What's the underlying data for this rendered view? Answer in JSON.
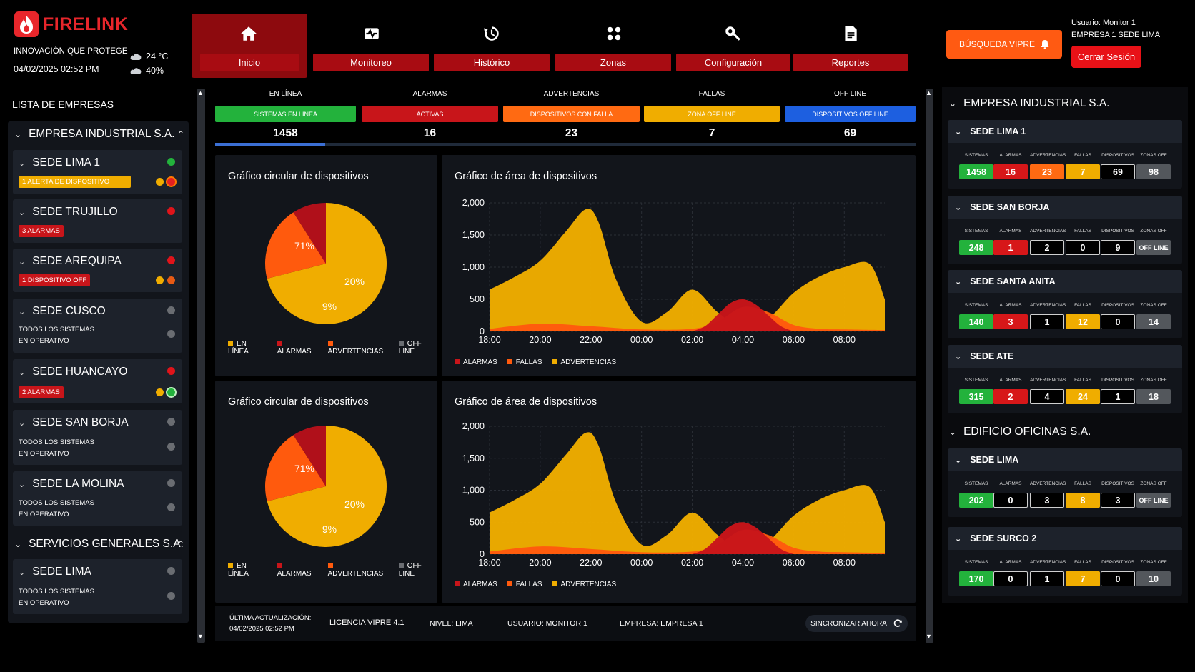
{
  "brand": {
    "name": "FIRELINK",
    "tagline": "INNOVACIÓN QUE PROTEGE",
    "datetime": "04/02/2025 02:52 PM"
  },
  "weather": {
    "temp": "24 °C",
    "humidity": "40%"
  },
  "nav": [
    {
      "label": "Inicio",
      "icon": "home-icon"
    },
    {
      "label": "Monitoreo",
      "icon": "monitor-icon"
    },
    {
      "label": "Histórico",
      "icon": "history-icon"
    },
    {
      "label": "Zonas",
      "icon": "zones-icon"
    },
    {
      "label": "Configuración",
      "icon": "wrench-icon"
    },
    {
      "label": "Reportes",
      "icon": "report-icon"
    }
  ],
  "header": {
    "vipre": "BÚSQUEDA VIPRE",
    "user": "Usuario: Monitor 1",
    "company": "EMPRESA 1 SEDE LIMA",
    "logout": "Cerrar Sesión"
  },
  "sidebar": {
    "title": "LISTA DE EMPRESAS",
    "company1": "EMPRESA INDUSTRIAL S.A.",
    "company2": "SERVICIOS GENERALES S.A.",
    "ok1": "TODOS LOS SISTEMAS",
    "ok2": "EN OPERATIVO",
    "sites": [
      {
        "name": "SEDE LIMA 1",
        "badge": "1 ALERTA DE DISPOSITIVO"
      },
      {
        "name": "SEDE TRUJILLO",
        "badge": "3 ALARMAS"
      },
      {
        "name": "SEDE AREQUIPA",
        "badge": "1 DISPOSITIVO OFF"
      },
      {
        "name": "SEDE CUSCO"
      },
      {
        "name": "SEDE HUANCAYO",
        "badge": "2 ALARMAS"
      },
      {
        "name": "SEDE SAN BORJA"
      },
      {
        "name": "SEDE LA MOLINA"
      },
      {
        "name": "SEDE LIMA"
      }
    ]
  },
  "kpis": [
    {
      "label": "EN LÍNEA",
      "bar": "SISTEMAS EN LÍNEA",
      "value": "1458",
      "color": "#23b23c"
    },
    {
      "label": "ALARMAS",
      "bar": "ACTIVAS",
      "value": "16",
      "color": "#c8151a"
    },
    {
      "label": "ADVERTENCIAS",
      "bar": "DISPOSITIVOS CON FALLA",
      "value": "23",
      "color": "#ff6a12"
    },
    {
      "label": "FALLAS",
      "bar": "ZONA OFF LINE",
      "value": "7",
      "color": "#f0ad00"
    },
    {
      "label": "OFF LINE",
      "bar": "DISPOSITIVOS OFF LINE",
      "value": "69",
      "color": "#1d5fe0"
    }
  ],
  "progress": 0.157,
  "charts": {
    "pie_title": "Gráfico circular de dispositivos",
    "area_title": "Gráfico de área de dispositivos",
    "pie_legend": [
      "EN LÍNEA",
      "ALARMAS",
      "ADVERTENCIAS",
      "OFF LINE"
    ],
    "area_legend": [
      "ALARMAS",
      "FALLAS",
      "ADVERTENCIAS"
    ]
  },
  "chart_data": [
    {
      "type": "pie",
      "slices": [
        {
          "label": "EN LÍNEA",
          "value": 71,
          "text": "71%"
        },
        {
          "label": "ADVERTENCIAS",
          "value": 20,
          "text": "20%"
        },
        {
          "label": "ALARMAS",
          "value": 9,
          "text": "9%"
        }
      ],
      "colors": [
        "#f0ad00",
        "#ff5a0d",
        "#b0101a"
      ]
    },
    {
      "type": "area",
      "x": [
        "18:00",
        "20:00",
        "22:00",
        "00:00",
        "02:00",
        "04:00",
        "06:00",
        "08:00"
      ],
      "yticks": [
        "2,000",
        "1,500",
        "1,000",
        "500",
        "0"
      ],
      "ylim": [
        0,
        2000
      ],
      "series": [
        {
          "name": "ADVERTENCIAS",
          "color": "#f0ad00",
          "x": [
            18,
            19,
            20,
            21,
            21.8,
            22.3,
            23,
            24,
            25,
            26,
            27,
            28,
            29,
            30,
            31,
            32,
            33,
            33.6
          ],
          "values": [
            650,
            850,
            1100,
            1550,
            1900,
            1700,
            800,
            150,
            300,
            650,
            300,
            50,
            200,
            600,
            850,
            1000,
            1050,
            500
          ]
        },
        {
          "name": "FALLAS",
          "color": "#ff5a0d",
          "x": [
            18,
            20,
            22,
            24,
            26,
            27,
            28,
            29,
            30,
            31,
            32,
            33.6
          ],
          "values": [
            40,
            120,
            80,
            30,
            40,
            150,
            380,
            300,
            100,
            40,
            30,
            20
          ]
        },
        {
          "name": "ALARMAS",
          "color": "#c8151a",
          "x": [
            26,
            26.5,
            27,
            27.5,
            28,
            28.5,
            29,
            29.5,
            30
          ],
          "values": [
            0,
            80,
            260,
            440,
            500,
            420,
            250,
            80,
            0
          ]
        }
      ]
    },
    {
      "type": "pie",
      "slices": [
        {
          "label": "EN LÍNEA",
          "value": 71,
          "text": "71%"
        },
        {
          "label": "ADVERTENCIAS",
          "value": 20,
          "text": "20%"
        },
        {
          "label": "ALARMAS",
          "value": 9,
          "text": "9%"
        }
      ],
      "colors": [
        "#f0ad00",
        "#ff5a0d",
        "#b0101a"
      ]
    },
    {
      "type": "area",
      "x": [
        "18:00",
        "20:00",
        "22:00",
        "00:00",
        "02:00",
        "04:00",
        "06:00",
        "08:00"
      ],
      "yticks": [
        "2,000",
        "1,500",
        "1,000",
        "500",
        "0"
      ],
      "ylim": [
        0,
        2000
      ],
      "series": [
        {
          "name": "ADVERTENCIAS",
          "color": "#f0ad00",
          "x": [
            18,
            19,
            20,
            21,
            21.8,
            22.3,
            23,
            24,
            25,
            26,
            27,
            28,
            29,
            30,
            31,
            32,
            33,
            33.6
          ],
          "values": [
            650,
            850,
            1100,
            1550,
            1900,
            1700,
            800,
            150,
            300,
            650,
            300,
            50,
            200,
            600,
            850,
            1000,
            1050,
            500
          ]
        },
        {
          "name": "FALLAS",
          "color": "#ff5a0d",
          "x": [
            18,
            20,
            22,
            24,
            26,
            27,
            28,
            29,
            30,
            31,
            32,
            33.6
          ],
          "values": [
            40,
            120,
            80,
            30,
            40,
            150,
            380,
            300,
            100,
            40,
            30,
            20
          ]
        },
        {
          "name": "ALARMAS",
          "color": "#c8151a",
          "x": [
            26,
            26.5,
            27,
            27.5,
            28,
            28.5,
            29,
            29.5,
            30
          ],
          "values": [
            0,
            80,
            260,
            440,
            500,
            420,
            250,
            80,
            0
          ]
        }
      ]
    }
  ],
  "footer": {
    "updated1": "ÚLTIMA ACTUALIZACIÓN:",
    "updated2": "04/02/2025 02:52 PM",
    "license": "LICENCIA VIPRE 4.1",
    "level": "NIVEL: LIMA",
    "user": "USUARIO: MONITOR 1",
    "company": "EMPRESA: EMPRESA 1",
    "sync": "SINCRONIZAR AHORA"
  },
  "right": {
    "cols": [
      "SISTEMAS",
      "ALARMAS",
      "ADVERTENCIAS",
      "FALLAS",
      "DISPOSITIVOS",
      "ZONAS OFF"
    ],
    "company1": "EMPRESA INDUSTRIAL S.A.",
    "company2": "EDIFICIO OFICINAS S.A.",
    "sites": [
      {
        "name": "SEDE LIMA 1",
        "values": [
          "1458",
          "16",
          "23",
          "7",
          "69",
          "98"
        ]
      },
      {
        "name": "SEDE SAN BORJA",
        "values": [
          "248",
          "1",
          "2",
          "0",
          "9",
          "OFF LINE"
        ]
      },
      {
        "name": "SEDE SANTA ANITA",
        "values": [
          "140",
          "3",
          "1",
          "12",
          "0",
          "14"
        ]
      },
      {
        "name": "SEDE ATE",
        "values": [
          "315",
          "2",
          "4",
          "24",
          "1",
          "18"
        ]
      },
      {
        "name": "SEDE LIMA",
        "values": [
          "202",
          "0",
          "3",
          "8",
          "3",
          "OFF LINE"
        ]
      },
      {
        "name": "SEDE SURCO 2",
        "values": [
          "170",
          "0",
          "1",
          "7",
          "0",
          "10"
        ]
      }
    ]
  }
}
